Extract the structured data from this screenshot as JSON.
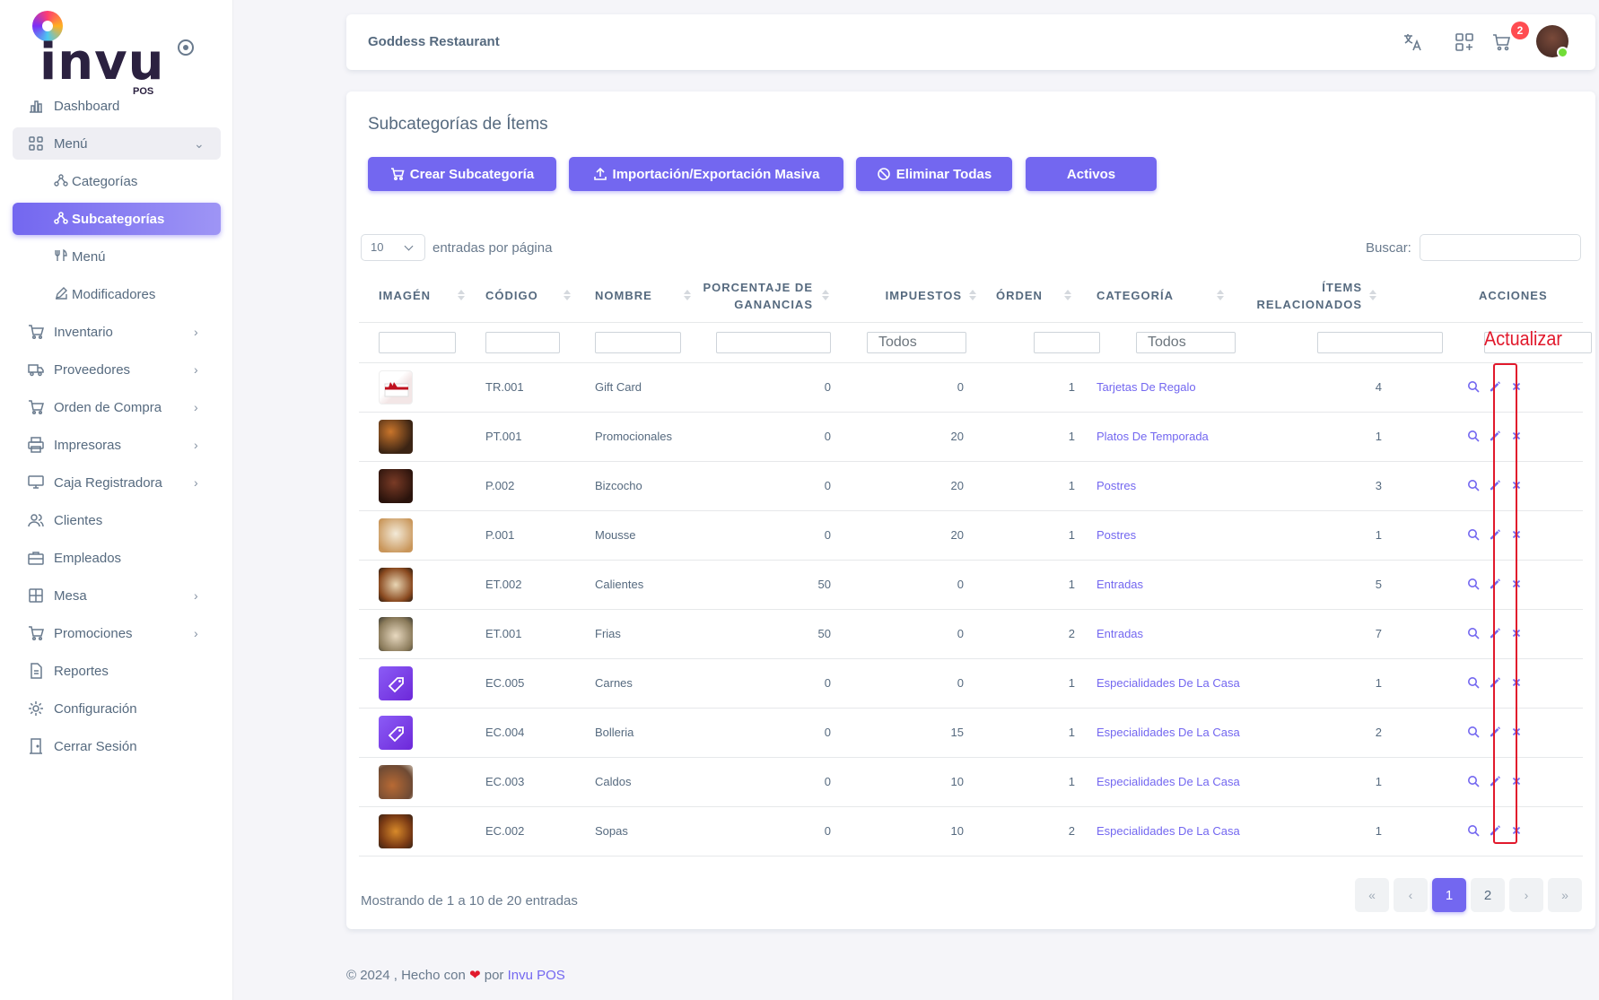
{
  "brand": {
    "name": "invu",
    "sub": "POS"
  },
  "sidebar": {
    "items": [
      {
        "label": "Dashboard",
        "icon": "chart-bar-icon"
      },
      {
        "label": "Menú",
        "icon": "grid-icon",
        "open": true
      },
      {
        "label": "Inventario",
        "icon": "cart-icon"
      },
      {
        "label": "Proveedores",
        "icon": "truck-icon"
      },
      {
        "label": "Orden de Compra",
        "icon": "cart-icon"
      },
      {
        "label": "Impresoras",
        "icon": "printer-icon"
      },
      {
        "label": "Caja Registradora",
        "icon": "register-icon"
      },
      {
        "label": "Clientes",
        "icon": "users-icon"
      },
      {
        "label": "Empleados",
        "icon": "briefcase-icon"
      },
      {
        "label": "Mesa",
        "icon": "table-icon"
      },
      {
        "label": "Promociones",
        "icon": "cart-icon"
      },
      {
        "label": "Reportes",
        "icon": "file-icon"
      },
      {
        "label": "Configuración",
        "icon": "gear-icon"
      },
      {
        "label": "Cerrar Sesión",
        "icon": "door-icon"
      }
    ],
    "submenu": [
      {
        "label": "Categorías",
        "icon": "nodes-icon"
      },
      {
        "label": "Subcategorías",
        "icon": "nodes-icon",
        "active": true
      },
      {
        "label": "Menú",
        "icon": "utensils-icon"
      },
      {
        "label": "Modificadores",
        "icon": "edit-icon"
      }
    ]
  },
  "header": {
    "title": "Goddess Restaurant",
    "cart_count": "2"
  },
  "page": {
    "title": "Subcategorías de Ítems",
    "buttons": {
      "create": "Crear Subcategoría",
      "import": "Importación/Exportación Masiva",
      "delete_all": "Eliminar Todas",
      "active": "Activos"
    },
    "page_length": "10",
    "length_label": "entradas por página",
    "search_label": "Buscar:"
  },
  "table": {
    "columns": {
      "image": "IMAGÉN",
      "code": "CÓDIGO",
      "name": "NOMBRE",
      "margin_1": "PORCENTAJE DE",
      "margin_2": "GANANCIAS",
      "taxes": "IMPUESTOS",
      "order": "ÓRDEN",
      "category": "CATEGORÍA",
      "items_1": "ÍTEMS",
      "items_2": "RELACIONADOS",
      "actions": "ACCIONES"
    },
    "filter_taxes": "Todos",
    "filter_category": "Todos",
    "annotation": "Actualizar",
    "rows": [
      {
        "code": "TR.001",
        "name": "Gift Card",
        "margin": "0",
        "taxes": "0",
        "order": "1",
        "category": "Tarjetas De Regalo",
        "items": "4",
        "thumb": "gift"
      },
      {
        "code": "PT.001",
        "name": "Promocionales",
        "margin": "0",
        "taxes": "20",
        "order": "1",
        "category": "Platos De Temporada",
        "items": "1",
        "thumb": "food1"
      },
      {
        "code": "P.002",
        "name": "Bizcocho",
        "margin": "0",
        "taxes": "20",
        "order": "1",
        "category": "Postres",
        "items": "3",
        "thumb": "cake"
      },
      {
        "code": "P.001",
        "name": "Mousse",
        "margin": "0",
        "taxes": "20",
        "order": "1",
        "category": "Postres",
        "items": "1",
        "thumb": "mousse"
      },
      {
        "code": "ET.002",
        "name": "Calientes",
        "margin": "50",
        "taxes": "0",
        "order": "1",
        "category": "Entradas",
        "items": "5",
        "thumb": "food2"
      },
      {
        "code": "ET.001",
        "name": "Frias",
        "margin": "50",
        "taxes": "0",
        "order": "2",
        "category": "Entradas",
        "items": "7",
        "thumb": "food3"
      },
      {
        "code": "EC.005",
        "name": "Carnes",
        "margin": "0",
        "taxes": "0",
        "order": "1",
        "category": "Especialidades De La Casa",
        "items": "1",
        "thumb": "tag"
      },
      {
        "code": "EC.004",
        "name": "Bolleria",
        "margin": "0",
        "taxes": "15",
        "order": "1",
        "category": "Especialidades De La Casa",
        "items": "2",
        "thumb": "tag"
      },
      {
        "code": "EC.003",
        "name": "Caldos",
        "margin": "0",
        "taxes": "10",
        "order": "1",
        "category": "Especialidades De La Casa",
        "items": "1",
        "thumb": "food4"
      },
      {
        "code": "EC.002",
        "name": "Sopas",
        "margin": "0",
        "taxes": "10",
        "order": "2",
        "category": "Especialidades De La Casa",
        "items": "1",
        "thumb": "food5"
      }
    ]
  },
  "pagination": {
    "info": "Mostrando de 1 a 10 de 20 entradas",
    "first": "«",
    "prev": "‹",
    "pages": [
      "1",
      "2"
    ],
    "next": "›",
    "last": "»"
  },
  "footer": {
    "prefix": "© 2024 , Hecho con",
    "heart": "❤",
    "by": "por",
    "brand": "Invu POS"
  },
  "colors": {
    "accent": "#7367f0",
    "annotation": "#e1192c"
  }
}
